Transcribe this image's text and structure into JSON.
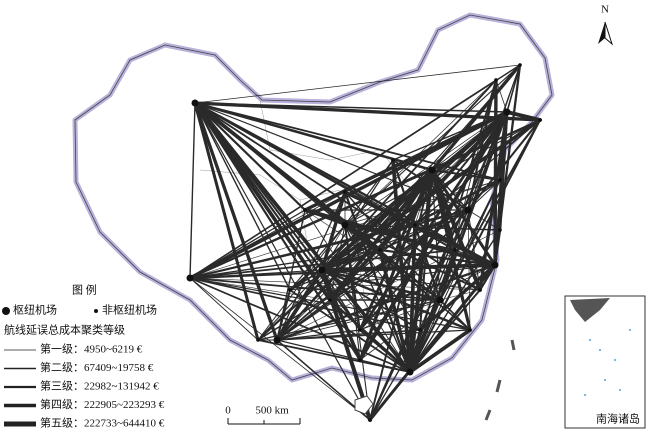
{
  "map": {
    "north": "N",
    "legend": {
      "title": "图 例",
      "hub": "枢纽机场",
      "non_hub": "非枢纽机场",
      "cost_title": "航线延误总成本聚类等级",
      "levels": [
        "第一级：4950~6219 €",
        "第二级：67409~19758 €",
        "第三级：22982~131942 €",
        "第四级：222905~223293 €",
        "第五级：222733~644410 €"
      ]
    },
    "scale": {
      "zero": "0",
      "distance": "500 km"
    },
    "inset": "南海诸岛"
  }
}
